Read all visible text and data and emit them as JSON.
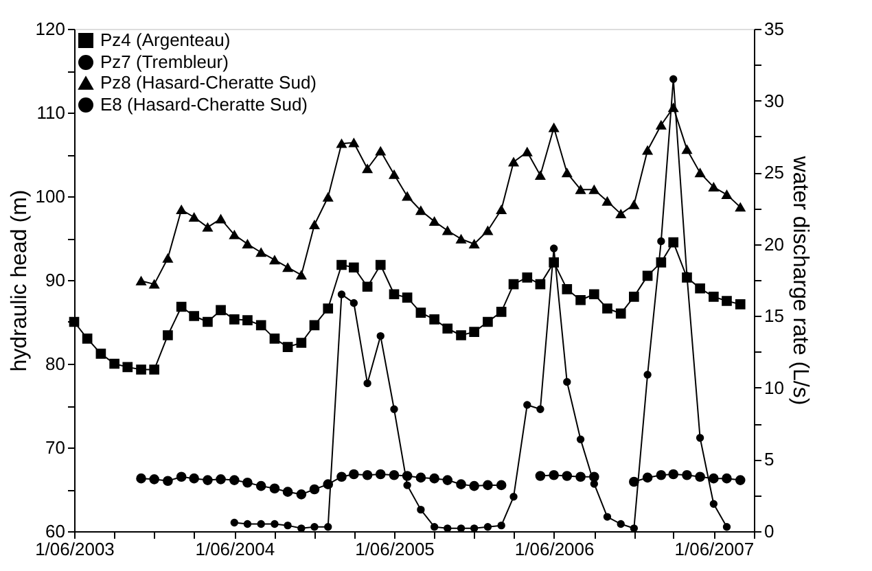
{
  "chart_data": {
    "type": "line",
    "xlim": [
      "2003-06-01",
      "2007-09-01"
    ],
    "xticks": [
      {
        "value": "2003-06-01",
        "label": "1/06/2003"
      },
      {
        "value": "2003-09-01",
        "label": null
      },
      {
        "value": "2003-12-01",
        "label": null
      },
      {
        "value": "2004-03-01",
        "label": null
      },
      {
        "value": "2004-06-01",
        "label": "1/06/2004"
      },
      {
        "value": "2004-09-01",
        "label": null
      },
      {
        "value": "2004-12-01",
        "label": null
      },
      {
        "value": "2005-03-01",
        "label": null
      },
      {
        "value": "2005-06-01",
        "label": "1/06/2005"
      },
      {
        "value": "2005-09-01",
        "label": null
      },
      {
        "value": "2005-12-01",
        "label": null
      },
      {
        "value": "2006-03-01",
        "label": null
      },
      {
        "value": "2006-06-01",
        "label": "1/06/2006"
      },
      {
        "value": "2006-09-01",
        "label": null
      },
      {
        "value": "2006-12-01",
        "label": null
      },
      {
        "value": "2007-03-01",
        "label": null
      },
      {
        "value": "2007-06-01",
        "label": "1/06/2007"
      },
      {
        "value": "2007-09-01",
        "label": null
      }
    ],
    "ylim": [
      60,
      120
    ],
    "yticks": [
      60,
      {
        "value": 65,
        "label": null
      },
      70,
      {
        "value": 75,
        "label": null
      },
      80,
      {
        "value": 85,
        "label": null
      },
      90,
      {
        "value": 95,
        "label": null
      },
      100,
      {
        "value": 105,
        "label": null
      },
      110,
      {
        "value": 115,
        "label": null
      },
      120
    ],
    "y2lim": [
      0,
      35
    ],
    "y2ticks": [
      0,
      {
        "value": 2.5,
        "label": null
      },
      5,
      {
        "value": 7.5,
        "label": null
      },
      10,
      {
        "value": 12.5,
        "label": null
      },
      15,
      {
        "value": 17.5,
        "label": null
      },
      20,
      {
        "value": 22.5,
        "label": null
      },
      25,
      {
        "value": 27.5,
        "label": null
      },
      30,
      {
        "value": 32.5,
        "label": null
      },
      35
    ],
    "ylabel": "hydraulic head (m)",
    "y2label": "water discharge rate (L/s)",
    "legend": "top left",
    "grid": false,
    "line_style": "solid",
    "series": [
      {
        "name": "Pz4 (Argenteau)",
        "color": "#000000",
        "marker": "square",
        "x": [
          "2003-06",
          "2003-07",
          "2003-08",
          "2003-09",
          "2003-10",
          "2003-11",
          "2003-12",
          "2004-01",
          "2004-02",
          "2004-03",
          "2004-04",
          "2004-05",
          "2004-06",
          "2004-07",
          "2004-08",
          "2004-09",
          "2004-10",
          "2004-11",
          "2004-12",
          "2005-01",
          "2005-02",
          "2005-03",
          "2005-04",
          "2005-05",
          "2005-06",
          "2005-07",
          "2005-08",
          "2005-09",
          "2005-10",
          "2005-11",
          "2005-12",
          "2006-01",
          "2006-02",
          "2006-03",
          "2006-04",
          "2006-05",
          "2006-06",
          "2006-07",
          "2006-08",
          "2006-09",
          "2006-10",
          "2006-11",
          "2006-12",
          "2007-01",
          "2007-02",
          "2007-03",
          "2007-04",
          "2007-05",
          "2007-06",
          "2007-07",
          "2007-08"
        ],
        "values": [
          85.0,
          83.0,
          81.2,
          80.0,
          79.6,
          79.3,
          79.3,
          83.4,
          86.8,
          85.7,
          85.0,
          86.4,
          85.3,
          85.2,
          84.6,
          83.0,
          82.0,
          82.5,
          84.6,
          86.6,
          91.8,
          91.5,
          89.2,
          91.8,
          88.3,
          87.9,
          86.1,
          85.3,
          84.2,
          83.4,
          83.8,
          85.0,
          86.2,
          89.5,
          90.3,
          89.5,
          92.1,
          88.9,
          87.6,
          88.3,
          86.6,
          86.0,
          88.0,
          90.5,
          92.1,
          94.5,
          90.3,
          89.0,
          88.0,
          87.5,
          87.1
        ]
      },
      {
        "name": "Pz7 (Trembleur)",
        "color": "#000000",
        "marker": "circle",
        "x": [
          "2003-11",
          "2003-12",
          "2004-01",
          "2004-02",
          "2004-03",
          "2004-04",
          "2004-05",
          "2004-06",
          "2004-07",
          "2004-08",
          "2004-09",
          "2004-10",
          "2004-11",
          "2004-12",
          "2005-01",
          "2005-02",
          "2005-03",
          "2005-04",
          "2005-05",
          "2005-06",
          "2005-07",
          "2005-08",
          "2005-09",
          "2005-10",
          "2005-11",
          "2005-12",
          "2006-01",
          "2006-02",
          "2006-03",
          "2006-04",
          "2006-05",
          "2006-06",
          "2006-07",
          "2006-08",
          "2006-09",
          "2006-10",
          "2006-11",
          "2006-12",
          "2007-01",
          "2007-02",
          "2007-03",
          "2007-04",
          "2007-05",
          "2007-06",
          "2007-07",
          "2007-08"
        ],
        "values": [
          66.3,
          66.2,
          66.0,
          66.5,
          66.3,
          66.1,
          66.2,
          66.1,
          65.8,
          65.4,
          65.1,
          64.7,
          64.4,
          65.0,
          65.6,
          66.5,
          66.8,
          66.7,
          66.8,
          66.7,
          66.6,
          66.4,
          66.3,
          66.1,
          65.6,
          65.4,
          65.5,
          65.5,
          null,
          null,
          66.6,
          66.7,
          66.6,
          66.5,
          66.5,
          null,
          null,
          65.9,
          66.4,
          66.7,
          66.8,
          66.7,
          66.5,
          66.3,
          66.3,
          66.1
        ]
      },
      {
        "name": "Pz8 (Hasard-Cheratte Sud)",
        "color": "#000000",
        "marker": "triangle",
        "x": [
          "2003-11",
          "2003-12",
          "2004-01",
          "2004-02",
          "2004-03",
          "2004-04",
          "2004-05",
          "2004-06",
          "2004-07",
          "2004-08",
          "2004-09",
          "2004-10",
          "2004-11",
          "2004-12",
          "2005-01",
          "2005-02",
          "2005-03",
          "2005-04",
          "2005-05",
          "2005-06",
          "2005-07",
          "2005-08",
          "2005-09",
          "2005-10",
          "2005-11",
          "2005-12",
          "2006-01",
          "2006-02",
          "2006-03",
          "2006-04",
          "2006-05",
          "2006-06",
          "2006-07",
          "2006-08",
          "2006-09",
          "2006-10",
          "2006-11",
          "2006-12",
          "2007-01",
          "2007-02",
          "2007-03",
          "2007-04",
          "2007-05",
          "2007-06",
          "2007-07",
          "2007-08"
        ],
        "values": [
          89.9,
          89.5,
          92.6,
          98.4,
          97.5,
          96.3,
          97.3,
          95.4,
          94.3,
          93.3,
          92.4,
          91.5,
          90.6,
          96.6,
          99.9,
          106.3,
          106.4,
          103.3,
          105.4,
          102.6,
          100.0,
          98.3,
          97.0,
          95.9,
          94.9,
          94.3,
          95.9,
          98.4,
          104.1,
          105.3,
          102.5,
          108.2,
          102.8,
          100.8,
          100.8,
          99.4,
          97.9,
          99.0,
          105.5,
          108.5,
          110.6,
          105.6,
          102.8,
          101.1,
          100.2,
          98.7
        ]
      },
      {
        "name": "E8 (Hasard-Cheratte Sud)",
        "color": "#000000",
        "marker": "circle",
        "axis": "y2",
        "x": [
          "2004-06",
          "2004-07",
          "2004-08",
          "2004-09",
          "2004-10",
          "2004-11",
          "2004-12",
          "2005-01",
          "2005-02",
          "2005-03",
          "2005-04",
          "2005-05",
          "2005-06",
          "2005-07",
          "2005-08",
          "2005-09",
          "2005-10",
          "2005-11",
          "2005-12",
          "2006-01",
          "2006-02",
          "2006-03",
          "2006-04",
          "2006-05",
          "2006-06",
          "2006-07",
          "2006-08",
          "2006-09",
          "2006-10",
          "2006-11",
          "2006-12",
          "2007-01",
          "2007-02",
          "2007-03",
          "2007-04",
          "2007-05",
          "2007-06",
          "2007-07"
        ],
        "values": [
          0.6,
          0.5,
          0.5,
          0.5,
          0.4,
          0.2,
          0.3,
          0.3,
          16.5,
          15.9,
          10.3,
          13.6,
          8.5,
          3.2,
          1.5,
          0.3,
          0.2,
          0.2,
          0.2,
          0.3,
          0.4,
          2.4,
          8.8,
          8.5,
          19.7,
          10.4,
          6.4,
          3.3,
          1.0,
          0.5,
          0.2,
          10.9,
          20.2,
          31.5,
          17.8,
          6.5,
          1.9,
          0.3
        ]
      }
    ]
  }
}
